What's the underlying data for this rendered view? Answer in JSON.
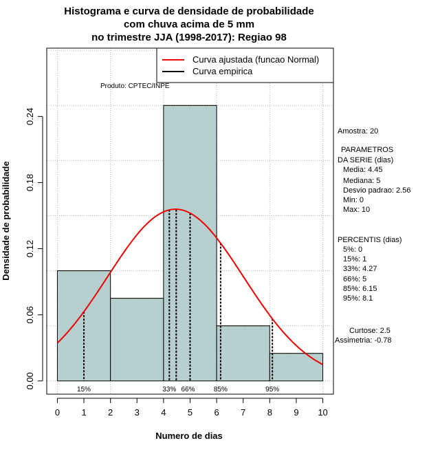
{
  "chart_data": {
    "type": "bar",
    "title_lines": [
      "Histograma e curva de densidade de probabilidade",
      "com chuva acima de 5 mm",
      "no trimestre JJA (1998-2017): Regiao 98"
    ],
    "xlabel": "Numero de dias",
    "ylabel": "Densidade de probabilidade",
    "xlim": [
      -0.4,
      10.4
    ],
    "ylim": [
      -0.012,
      0.302
    ],
    "x_ticks": [
      "0",
      "1",
      "2",
      "3",
      "4",
      "5",
      "6",
      "7",
      "8",
      "9",
      "10"
    ],
    "y_ticks": [
      "0.00",
      "0.06",
      "0.12",
      "0.18",
      "0.24"
    ],
    "bins": [
      {
        "start": 0,
        "end": 2,
        "density": 0.1
      },
      {
        "start": 2,
        "end": 4,
        "density": 0.075
      },
      {
        "start": 4,
        "end": 6,
        "density": 0.25
      },
      {
        "start": 6,
        "end": 8,
        "density": 0.05
      },
      {
        "start": 8,
        "end": 10,
        "density": 0.025
      }
    ],
    "normal_fit": {
      "mean": 4.45,
      "sd": 2.56,
      "x_range": [
        0,
        10
      ]
    },
    "percentile_lines": [
      {
        "label": "15%",
        "x": 1,
        "show_label": true
      },
      {
        "label": "33%",
        "x": 4.27,
        "show_label": true
      },
      {
        "label": "",
        "x": 4.27,
        "show_label": false
      },
      {
        "label": "66%",
        "x": 5,
        "show_label": true
      },
      {
        "label": "85%",
        "x": 6.15,
        "show_label": true
      },
      {
        "label": "95%",
        "x": 8.1,
        "show_label": true
      }
    ],
    "legend": {
      "items": [
        {
          "label": "Curva ajustada (funcao Normal)",
          "color": "#ee0000"
        },
        {
          "label": "Curva empirica",
          "color": "#000000"
        }
      ],
      "position": "top-right"
    },
    "source_note": "Produto: CPTEC/INPE",
    "bar_color": "#b7cfcf",
    "curve_color": "#ee0000",
    "grid": true
  },
  "side_panel": {
    "amostra": "Amostra: 20",
    "param_header_1": "PARAMETROS",
    "param_header_2": "DA SERIE (dias)",
    "params": [
      "Media: 4.45",
      "Mediana: 5",
      "Desvio padrao: 2.56",
      "Min: 0",
      "Max: 10"
    ],
    "percentis_header": "PERCENTIS (dias)",
    "percentis": [
      "5%: 0",
      "15%: 1",
      "33%: 4.27",
      "66%: 5",
      "85%: 6.15",
      "95%: 8.1"
    ],
    "curtose": "Curtose: 2.5",
    "assimetria": "Assimetria: -0.78"
  }
}
